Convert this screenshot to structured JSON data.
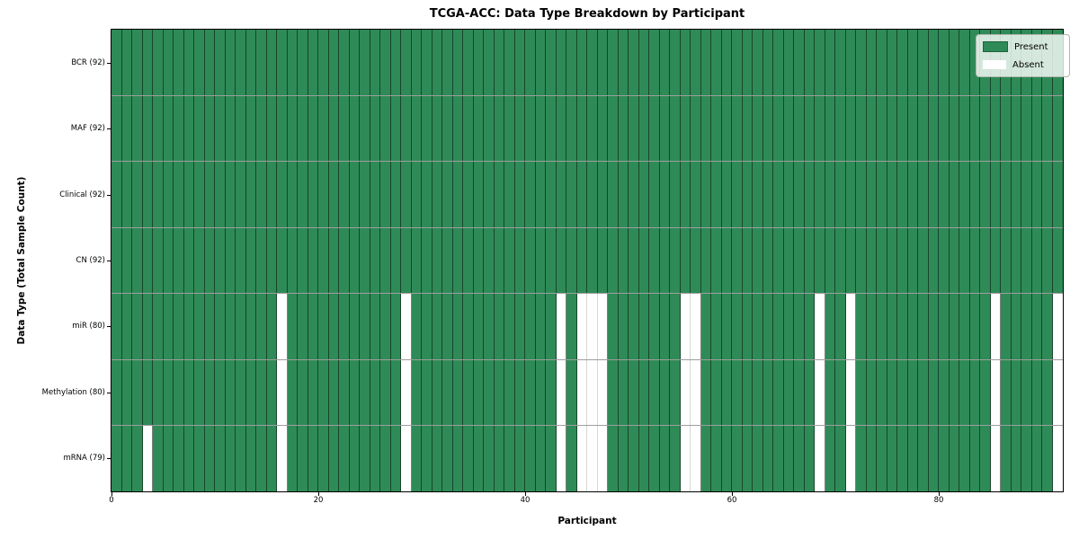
{
  "chart_data": {
    "type": "heatmap",
    "title": "TCGA-ACC: Data Type Breakdown by Participant",
    "xlabel": "Participant",
    "ylabel": "Data Type (Total Sample Count)",
    "x_ticks": [
      0,
      20,
      40,
      60,
      80
    ],
    "x_range": [
      0,
      92
    ],
    "n_participants": 92,
    "grid": true,
    "rows": [
      {
        "label": "BCR (92)",
        "data_type": "BCR",
        "present_count": 92,
        "absent_participants": []
      },
      {
        "label": "MAF (92)",
        "data_type": "MAF",
        "present_count": 92,
        "absent_participants": []
      },
      {
        "label": "Clinical (92)",
        "data_type": "Clinical",
        "present_count": 92,
        "absent_participants": []
      },
      {
        "label": "CN (92)",
        "data_type": "CN",
        "present_count": 92,
        "absent_participants": []
      },
      {
        "label": "miR (80)",
        "data_type": "miR",
        "present_count": 80,
        "absent_participants": [
          16,
          28,
          43,
          45,
          46,
          47,
          55,
          56,
          68,
          71,
          85,
          91
        ]
      },
      {
        "label": "Methylation (80)",
        "data_type": "Methylation",
        "present_count": 80,
        "absent_participants": [
          16,
          28,
          43,
          45,
          46,
          47,
          55,
          56,
          68,
          71,
          85,
          91
        ]
      },
      {
        "label": "mRNA (79)",
        "data_type": "mRNA",
        "present_count": 79,
        "absent_participants": [
          3,
          16,
          28,
          43,
          45,
          46,
          47,
          55,
          56,
          68,
          71,
          85,
          91
        ]
      }
    ],
    "legend": {
      "position": "upper right",
      "items": [
        {
          "label": "Present",
          "color": "#2e8b57"
        },
        {
          "label": "Absent",
          "color": "#ffffff"
        }
      ]
    },
    "colors": {
      "present": "#2e8b57",
      "absent": "#ffffff",
      "cell_edge": "rgba(0,0,0,0.5)",
      "absent_edge": "#d4d9d4",
      "row_divider": "rgba(0,0,0,0.38)"
    }
  }
}
